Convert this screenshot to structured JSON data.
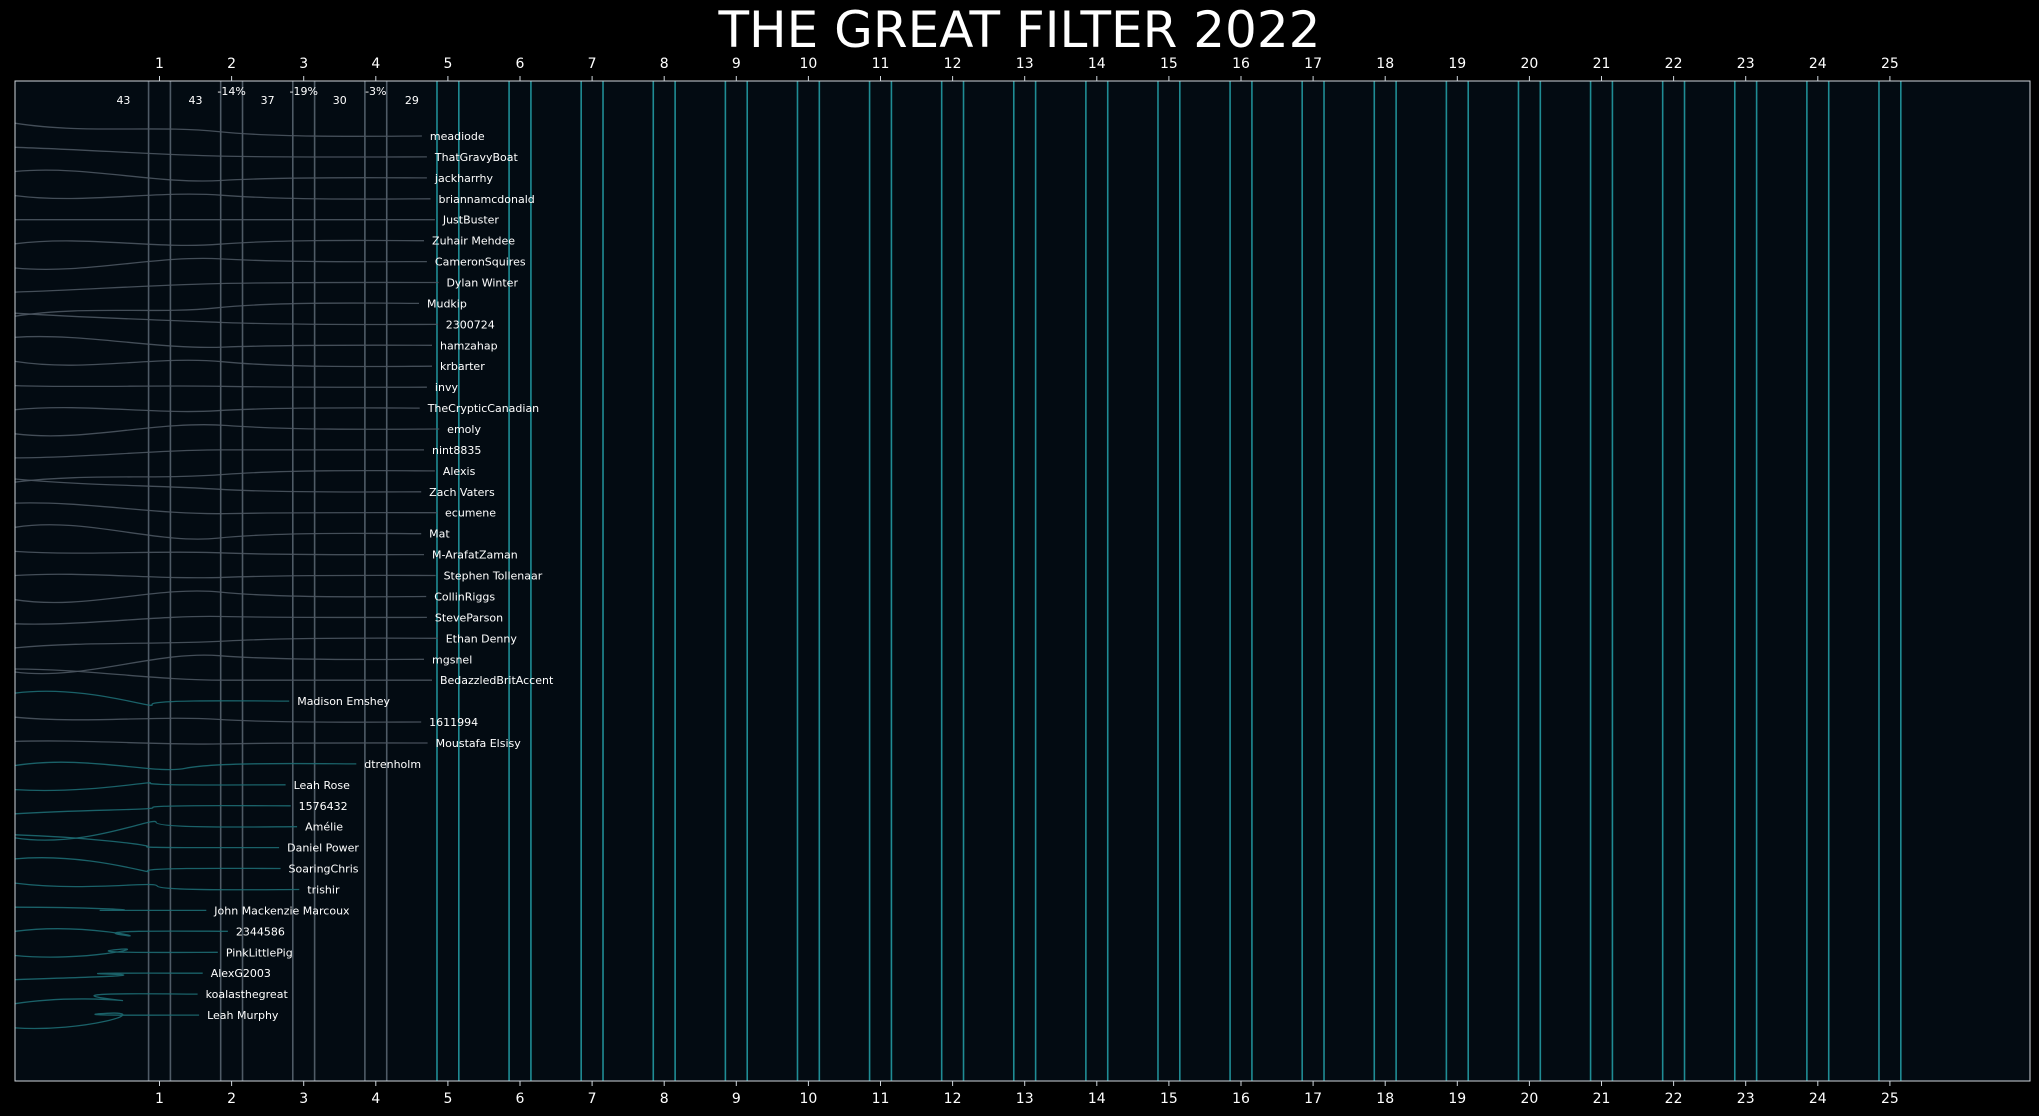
{
  "chart_data": {
    "type": "line",
    "title": "THE GREAT FILTER 2022",
    "xlabel": "",
    "ylabel": "",
    "x_ticks": [
      "1",
      "2",
      "3",
      "4",
      "5",
      "6",
      "7",
      "8",
      "9",
      "10",
      "11",
      "12",
      "13",
      "14",
      "15",
      "16",
      "17",
      "18",
      "19",
      "20",
      "21",
      "22",
      "23",
      "24",
      "25"
    ],
    "xlim": [
      -1.2,
      27.3
    ],
    "stage_counts": [
      {
        "x": 0.5,
        "text": "43"
      },
      {
        "x": 1.5,
        "text": "43"
      },
      {
        "x": 2.5,
        "text": "37"
      },
      {
        "x": 3.5,
        "text": "30"
      },
      {
        "x": 4.5,
        "text": "29"
      }
    ],
    "stage_changes": [
      {
        "x": 2.0,
        "text": "-14%"
      },
      {
        "x": 3.0,
        "text": "-19%"
      },
      {
        "x": 4.0,
        "text": "-3%"
      }
    ],
    "active_stage_lines": [
      1,
      2,
      3,
      4
    ],
    "future_stage_lines": [
      5,
      6,
      7,
      8,
      9,
      10,
      11,
      12,
      13,
      14,
      15,
      16,
      17,
      18,
      19,
      20,
      21,
      22,
      23,
      24,
      25
    ],
    "series": [
      {
        "name": "meadiode",
        "end_x": 4.75,
        "eliminated": false
      },
      {
        "name": "ThatGravyBoat",
        "end_x": 4.82,
        "eliminated": false
      },
      {
        "name": "jackharrhy",
        "end_x": 4.82,
        "eliminated": false
      },
      {
        "name": "briannamcdonald",
        "end_x": 4.87,
        "eliminated": false
      },
      {
        "name": "JustBuster",
        "end_x": 4.93,
        "eliminated": false
      },
      {
        "name": "Zuhair Mehdee",
        "end_x": 4.78,
        "eliminated": false
      },
      {
        "name": "CameronSquires",
        "end_x": 4.82,
        "eliminated": false
      },
      {
        "name": "Dylan Winter",
        "end_x": 4.98,
        "eliminated": false
      },
      {
        "name": "Mudkip",
        "end_x": 4.71,
        "eliminated": false
      },
      {
        "name": "2300724",
        "end_x": 4.97,
        "eliminated": false
      },
      {
        "name": "hamzahap",
        "end_x": 4.89,
        "eliminated": false
      },
      {
        "name": "krbarter",
        "end_x": 4.89,
        "eliminated": false
      },
      {
        "name": "invy",
        "end_x": 4.82,
        "eliminated": false
      },
      {
        "name": "TheCrypticCanadian",
        "end_x": 4.72,
        "eliminated": false
      },
      {
        "name": "emoly",
        "end_x": 4.99,
        "eliminated": false
      },
      {
        "name": "nint8835",
        "end_x": 4.78,
        "eliminated": false
      },
      {
        "name": "Alexis",
        "end_x": 4.93,
        "eliminated": false
      },
      {
        "name": "Zach Vaters",
        "end_x": 4.74,
        "eliminated": false
      },
      {
        "name": "ecumene",
        "end_x": 4.96,
        "eliminated": false
      },
      {
        "name": "Mat",
        "end_x": 4.74,
        "eliminated": false
      },
      {
        "name": "M-ArafatZaman",
        "end_x": 4.78,
        "eliminated": false
      },
      {
        "name": "Stephen Tollenaar",
        "end_x": 4.94,
        "eliminated": false
      },
      {
        "name": "CollinRiggs",
        "end_x": 4.81,
        "eliminated": false
      },
      {
        "name": "SteveParson",
        "end_x": 4.82,
        "eliminated": false
      },
      {
        "name": "Ethan Denny",
        "end_x": 4.97,
        "eliminated": false
      },
      {
        "name": "mgsnel",
        "end_x": 4.78,
        "eliminated": false
      },
      {
        "name": "BedazzledBritAccent",
        "end_x": 4.89,
        "eliminated": false
      },
      {
        "name": "Madison Emshey",
        "end_x": 2.91,
        "eliminated": true
      },
      {
        "name": "1611994",
        "end_x": 4.74,
        "eliminated": false
      },
      {
        "name": "Moustafa Elsisy",
        "end_x": 4.83,
        "eliminated": false
      },
      {
        "name": "dtrenholm",
        "end_x": 3.84,
        "eliminated": true
      },
      {
        "name": "Leah Rose",
        "end_x": 2.86,
        "eliminated": true
      },
      {
        "name": "1576432",
        "end_x": 2.93,
        "eliminated": true
      },
      {
        "name": "Amélie",
        "end_x": 3.02,
        "eliminated": true
      },
      {
        "name": "Daniel Power",
        "end_x": 2.77,
        "eliminated": true
      },
      {
        "name": "SoaringChris",
        "end_x": 2.79,
        "eliminated": true
      },
      {
        "name": "trishir",
        "end_x": 3.05,
        "eliminated": true
      },
      {
        "name": "John Mackenzie Marcoux",
        "end_x": 1.76,
        "eliminated": true
      },
      {
        "name": "2344586",
        "end_x": 2.06,
        "eliminated": true
      },
      {
        "name": "PinkLittlePig",
        "end_x": 1.92,
        "eliminated": true
      },
      {
        "name": "AlexG2003",
        "end_x": 1.71,
        "eliminated": true
      },
      {
        "name": "koalasthegreat",
        "end_x": 1.64,
        "eliminated": true
      },
      {
        "name": "Leah Murphy",
        "end_x": 1.66,
        "eliminated": true
      }
    ],
    "legend": "none",
    "grid": false
  },
  "colors": {
    "background": "#000000",
    "plot_background": "#030b12",
    "plot_border": "#cfd6dc",
    "text": "#ffffff",
    "stage_line_active": "#4f5b66",
    "stage_line_future": "#1f8c94",
    "participant_line": "#4b5561",
    "eliminated_line": "#1d6a72"
  }
}
